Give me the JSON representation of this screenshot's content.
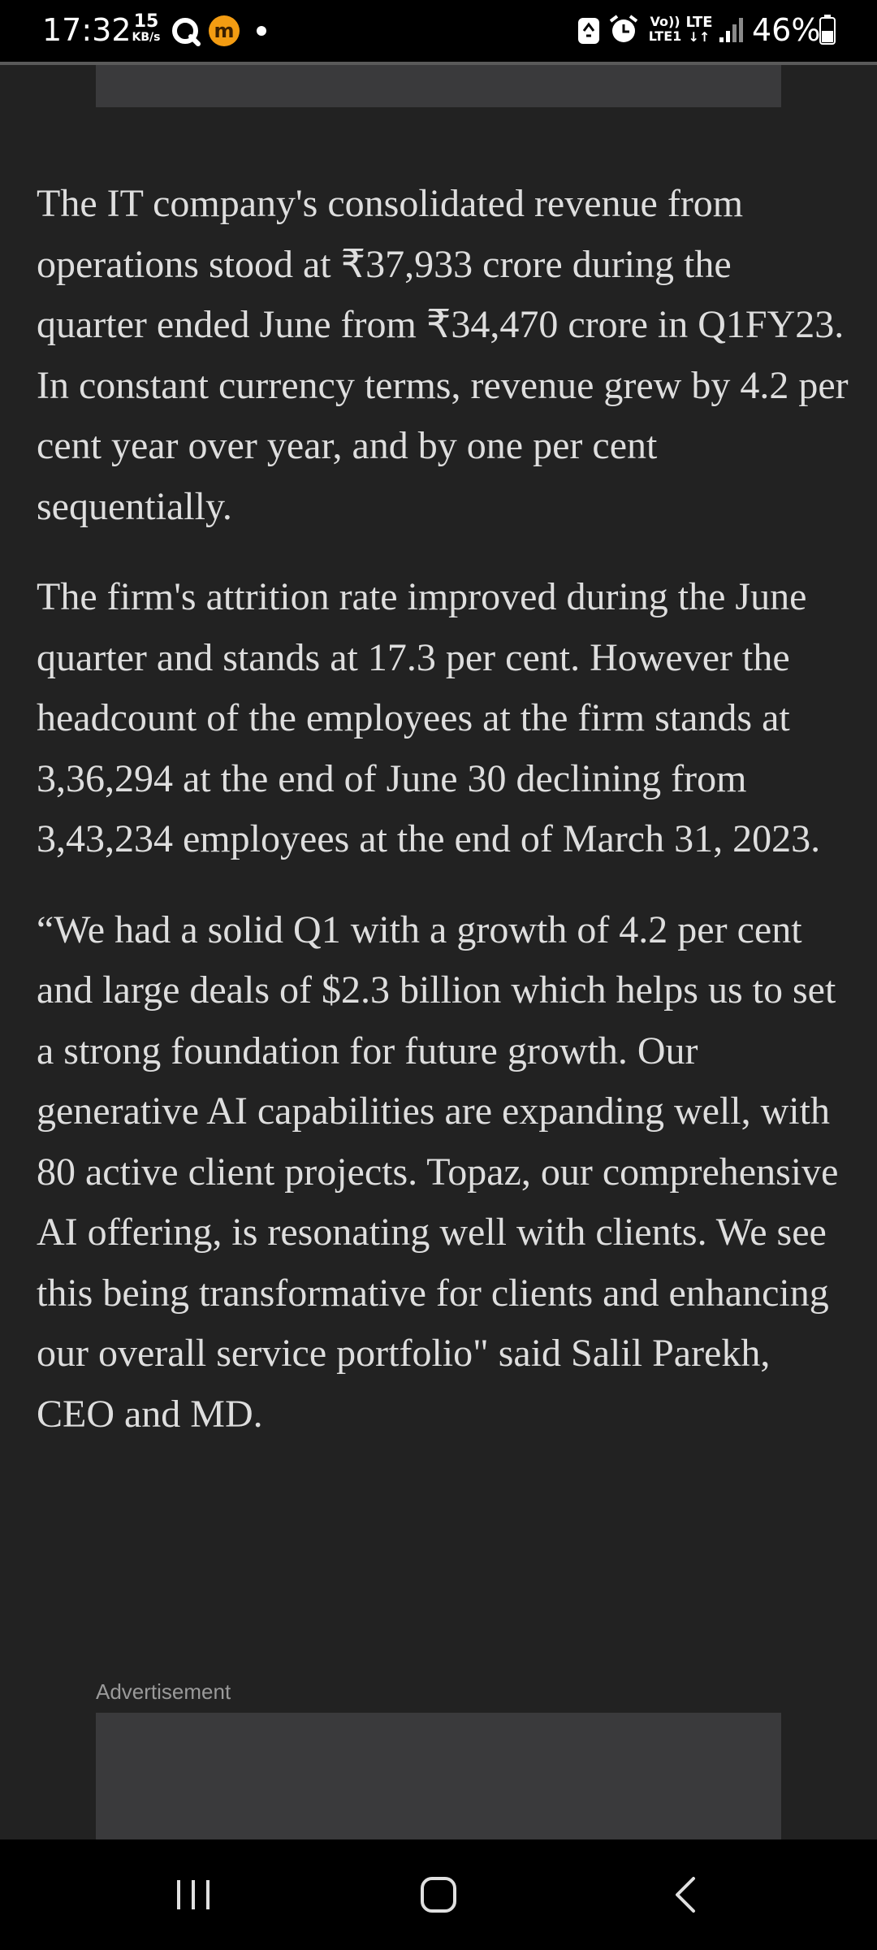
{
  "status_bar": {
    "time": "17:32",
    "net_speed_value": "15",
    "net_speed_unit": "KB/s",
    "volte_top": "Vo))",
    "volte_bottom": "LTE1",
    "lte_label": "LTE",
    "battery": "46%",
    "icons": [
      "q-icon",
      "m-app-icon",
      "notification-dot",
      "recycle-icon",
      "alarm-icon",
      "volte-icon",
      "lte-arrows-icon",
      "signal-icon",
      "battery-icon"
    ]
  },
  "article": {
    "paragraphs": [
      "The IT company's consolidated revenue from operations stood at ₹37,933 crore during the quarter ended June from ₹34,470 crore in Q1FY23. In constant currency terms, revenue grew by 4.2 per cent year over year, and by one per cent sequentially.",
      "The firm's attrition rate improved during the June quarter and stands at 17.3 per cent. However the headcount of the employees at the firm stands at 3,36,294 at the end of June 30 declining from 3,43,234 employees at the end of March 31, 2023.",
      "“We had a solid Q1 with a growth of 4.2 per cent and large deals of $2.3 billion which helps us to set a strong foundation for future growth. Our generative AI capabilities are expanding well, with 80 active client projects. Topaz, our comprehensive AI offering, is resonating well with clients. We see this being transformative for clients and enhancing our overall service portfolio\" said Salil Parekh, CEO and MD."
    ]
  },
  "advertisement": {
    "label": "Advertisement"
  },
  "nav_bar": {
    "buttons": [
      "recent-apps-icon",
      "home-icon",
      "back-icon"
    ]
  },
  "colors": {
    "background": "#222222",
    "text": "#dedede",
    "ad_placeholder": "#3a3a3c",
    "system_bar": "#000000"
  }
}
